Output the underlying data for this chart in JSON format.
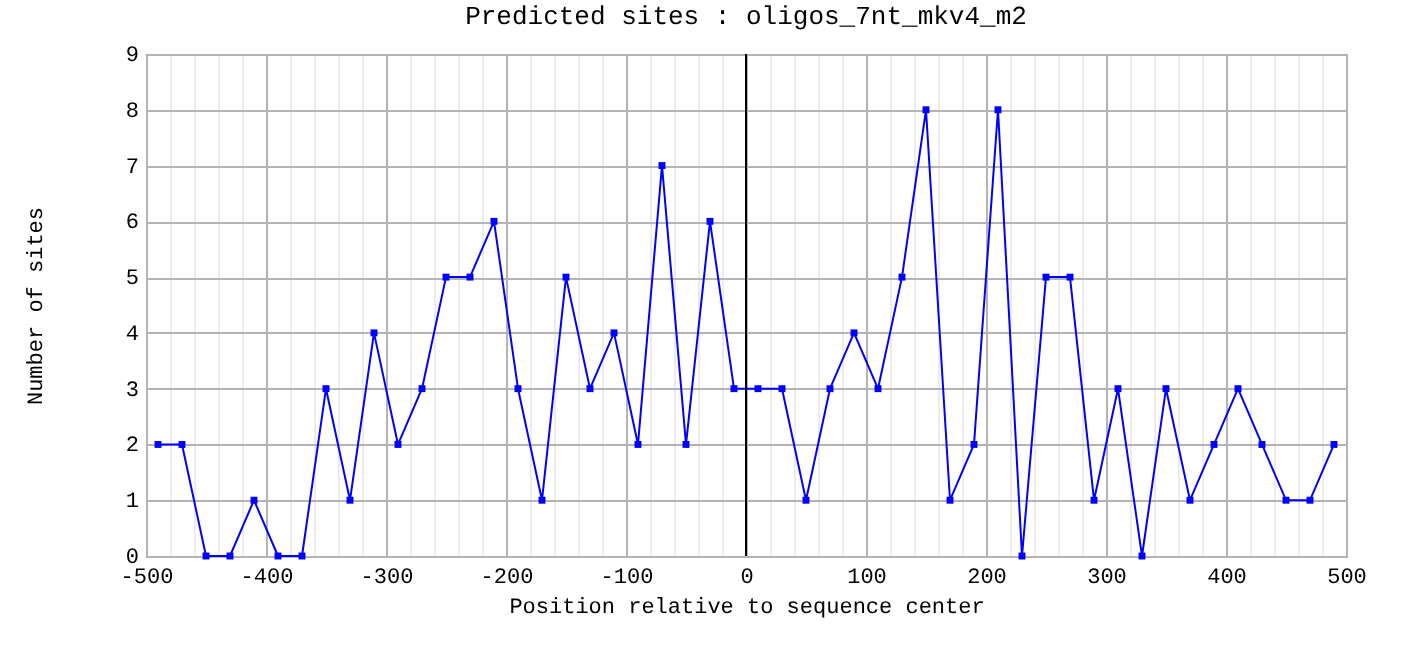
{
  "chart_data": {
    "type": "line",
    "title": "Predicted sites : oligos_7nt_mkv4_m2",
    "xlabel": "Position relative to sequence center",
    "ylabel": "Number of sites",
    "x": [
      -490,
      -470,
      -450,
      -430,
      -410,
      -390,
      -370,
      -350,
      -330,
      -310,
      -290,
      -270,
      -250,
      -230,
      -210,
      -190,
      -170,
      -150,
      -130,
      -110,
      -90,
      -70,
      -50,
      -30,
      -10,
      10,
      30,
      50,
      70,
      90,
      110,
      130,
      150,
      170,
      190,
      210,
      230,
      250,
      270,
      290,
      310,
      330,
      350,
      370,
      390,
      410,
      430,
      450,
      470,
      490
    ],
    "series": [
      {
        "color": "#0000ff",
        "values": [
          2,
          2,
          0,
          0,
          1,
          0,
          0,
          3,
          1,
          4,
          2,
          3,
          5,
          5,
          6,
          3,
          1,
          5,
          3,
          4,
          2,
          7,
          2,
          6,
          3,
          3,
          3,
          1,
          3,
          4,
          3,
          5,
          8,
          1,
          2,
          8,
          0,
          5,
          5,
          1,
          3,
          0,
          3,
          1,
          2,
          3,
          2,
          1,
          1,
          2
        ]
      }
    ],
    "xlim": [
      -500,
      500
    ],
    "xticks": [
      -500,
      {
        "value": -480,
        "label": null
      },
      {
        "value": -460,
        "label": null
      },
      {
        "value": -440,
        "label": null
      },
      {
        "value": -420,
        "label": null
      },
      -400,
      {
        "value": -380,
        "label": null
      },
      {
        "value": -360,
        "label": null
      },
      {
        "value": -340,
        "label": null
      },
      {
        "value": -320,
        "label": null
      },
      -300,
      {
        "value": -280,
        "label": null
      },
      {
        "value": -260,
        "label": null
      },
      {
        "value": -240,
        "label": null
      },
      {
        "value": -220,
        "label": null
      },
      -200,
      {
        "value": -180,
        "label": null
      },
      {
        "value": -160,
        "label": null
      },
      {
        "value": -140,
        "label": null
      },
      {
        "value": -120,
        "label": null
      },
      -100,
      {
        "value": -80,
        "label": null
      },
      {
        "value": -60,
        "label": null
      },
      {
        "value": -40,
        "label": null
      },
      {
        "value": -20,
        "label": null
      },
      0,
      {
        "value": 20,
        "label": null
      },
      {
        "value": 40,
        "label": null
      },
      {
        "value": 60,
        "label": null
      },
      {
        "value": 80,
        "label": null
      },
      100,
      {
        "value": 120,
        "label": null
      },
      {
        "value": 140,
        "label": null
      },
      {
        "value": 160,
        "label": null
      },
      {
        "value": 180,
        "label": null
      },
      200,
      {
        "value": 220,
        "label": null
      },
      {
        "value": 240,
        "label": null
      },
      {
        "value": 260,
        "label": null
      },
      {
        "value": 280,
        "label": null
      },
      300,
      {
        "value": 320,
        "label": null
      },
      {
        "value": 340,
        "label": null
      },
      {
        "value": 360,
        "label": null
      },
      {
        "value": 380,
        "label": null
      },
      400,
      {
        "value": 420,
        "label": null
      },
      {
        "value": 440,
        "label": null
      },
      {
        "value": 460,
        "label": null
      },
      {
        "value": 480,
        "label": null
      },
      500
    ],
    "ylim": [
      0,
      9
    ],
    "yticks": [
      0,
      1,
      2,
      3,
      4,
      5,
      6,
      7,
      8,
      9
    ],
    "grid": true,
    "marker": "square",
    "line_style": "solid",
    "ref_lines": [
      {
        "axis": "x",
        "value": 0,
        "color": "#000000"
      }
    ]
  }
}
